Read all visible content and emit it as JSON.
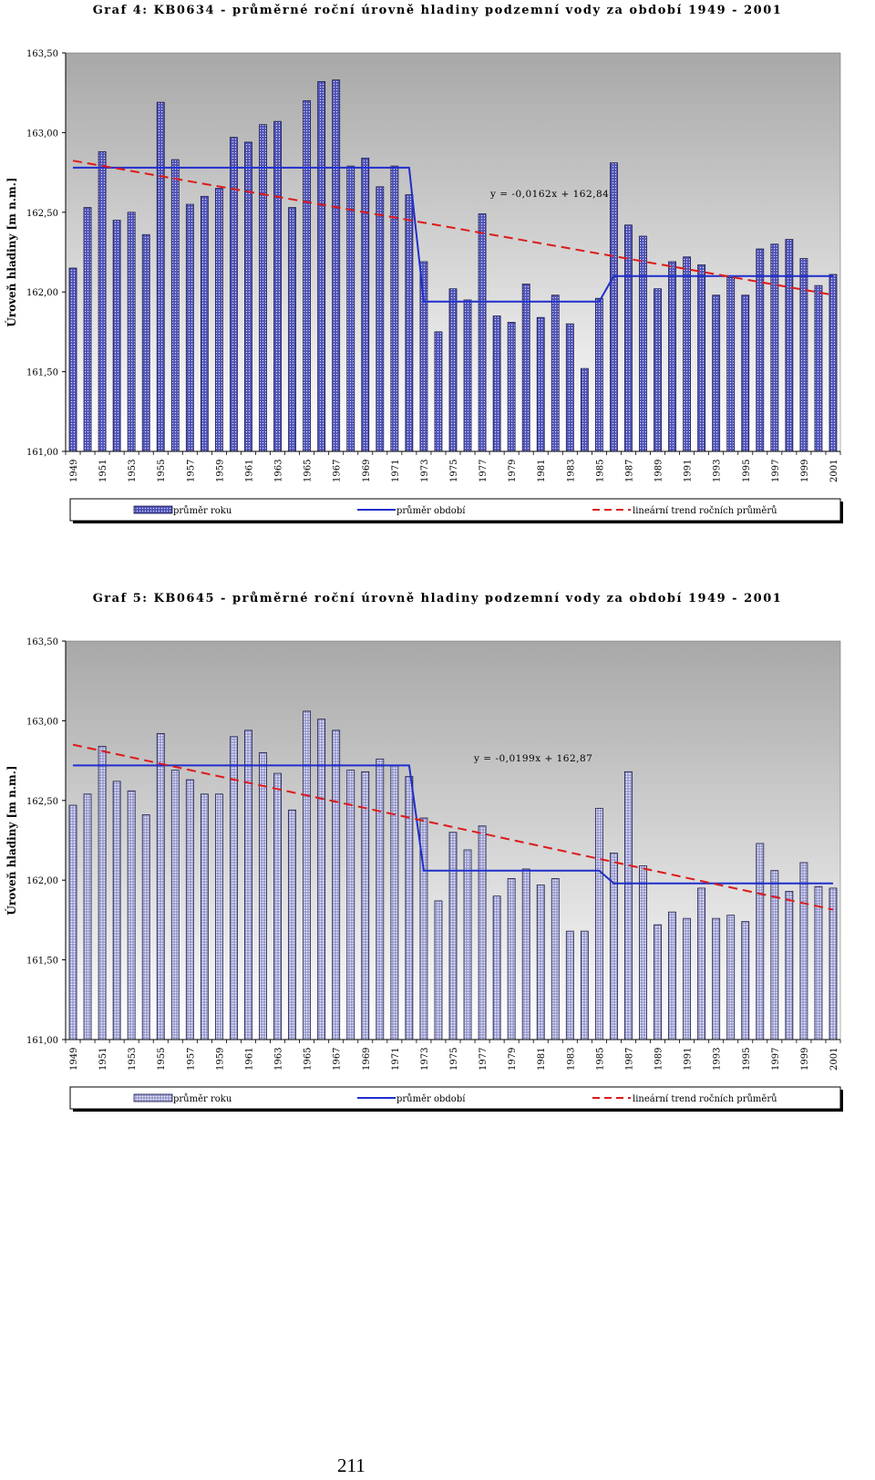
{
  "page_number": "211",
  "legend_labels": [
    "průměr roku",
    "průměr období",
    "lineární trend ročních průměrů"
  ],
  "colors": {
    "bar_fill": "#5b5fc4",
    "bar_fill_2": "#b4b6e0",
    "period_mean": "#1f2ecc",
    "trend": "#dd1a1a",
    "plot_bg_top": "#a8a8a8",
    "plot_bg_bottom": "#ffffff"
  },
  "chart_data": [
    {
      "type": "bar",
      "title": "Graf 4: KB0634 - průměrné roční úrovně hladiny podzemní vody za období 1949 - 2001",
      "ylabel": "Úroveň hladiny [m n.m.]",
      "xlabel": "",
      "ylim": [
        161.0,
        163.5
      ],
      "yticks": [
        "163,50",
        "163,00",
        "162,50",
        "162,00",
        "161,50",
        "161,00"
      ],
      "grid": false,
      "legend_position": "bottom",
      "trend_equation": "y = -0,0162x + 162,84",
      "x_tick_labels": [
        "1949",
        "1951",
        "1953",
        "1955",
        "1957",
        "1959",
        "1961",
        "1963",
        "1965",
        "1967",
        "1969",
        "1971",
        "1973",
        "1975",
        "1977",
        "1979",
        "1981",
        "1983",
        "1985",
        "1987",
        "1989",
        "1991",
        "1993",
        "1995",
        "1997",
        "1999",
        "2001"
      ],
      "categories": [
        1949,
        1950,
        1951,
        1952,
        1953,
        1954,
        1955,
        1956,
        1957,
        1958,
        1959,
        1960,
        1961,
        1962,
        1963,
        1964,
        1965,
        1966,
        1967,
        1968,
        1969,
        1970,
        1971,
        1972,
        1973,
        1974,
        1975,
        1976,
        1977,
        1978,
        1979,
        1980,
        1981,
        1982,
        1983,
        1984,
        1985,
        1986,
        1987,
        1988,
        1989,
        1990,
        1991,
        1992,
        1993,
        1994,
        1995,
        1996,
        1997,
        1998,
        1999,
        2000,
        2001
      ],
      "series": [
        {
          "name": "průměr roku",
          "type": "bar",
          "values": [
            162.15,
            162.53,
            162.88,
            162.45,
            162.5,
            162.36,
            163.19,
            162.83,
            162.55,
            162.6,
            162.65,
            162.97,
            162.94,
            163.05,
            163.07,
            162.53,
            163.2,
            163.32,
            163.33,
            162.79,
            162.84,
            162.66,
            162.79,
            162.61,
            162.19,
            161.75,
            162.02,
            161.95,
            162.49,
            161.85,
            161.81,
            162.05,
            161.84,
            161.98,
            161.8,
            161.52,
            161.96,
            162.81,
            162.42,
            162.35,
            162.02,
            162.19,
            162.22,
            162.17,
            161.98,
            162.09,
            161.98,
            162.27,
            162.3,
            162.33,
            162.21,
            162.04,
            162.11
          ]
        },
        {
          "name": "průměr období",
          "type": "step",
          "points": [
            [
              1949,
              162.78
            ],
            [
              1972,
              162.78
            ],
            [
              1973,
              161.94
            ],
            [
              1985,
              161.94
            ],
            [
              1986,
              162.1
            ],
            [
              2001,
              162.1
            ]
          ]
        },
        {
          "name": "lineární trend ročních průměrů",
          "type": "linear",
          "slope": -0.0162,
          "intercept": 162.84
        }
      ]
    },
    {
      "type": "bar",
      "title": "Graf 5: KB0645 - průměrné roční úrovně hladiny podzemní vody za období 1949 - 2001",
      "ylabel": "Úroveň hladiny [m n.m.]",
      "xlabel": "",
      "ylim": [
        161.0,
        163.5
      ],
      "yticks": [
        "163,50",
        "163,00",
        "162,50",
        "162,00",
        "161,50",
        "161,00"
      ],
      "grid": false,
      "legend_position": "bottom",
      "trend_equation": "y = -0,0199x + 162,87",
      "x_tick_labels": [
        "1949",
        "1951",
        "1953",
        "1955",
        "1957",
        "1959",
        "1961",
        "1963",
        "1965",
        "1967",
        "1969",
        "1971",
        "1973",
        "1975",
        "1977",
        "1979",
        "1981",
        "1983",
        "1985",
        "1987",
        "1989",
        "1991",
        "1993",
        "1995",
        "1997",
        "1999",
        "2001"
      ],
      "categories": [
        1949,
        1950,
        1951,
        1952,
        1953,
        1954,
        1955,
        1956,
        1957,
        1958,
        1959,
        1960,
        1961,
        1962,
        1963,
        1964,
        1965,
        1966,
        1967,
        1968,
        1969,
        1970,
        1971,
        1972,
        1973,
        1974,
        1975,
        1976,
        1977,
        1978,
        1979,
        1980,
        1981,
        1982,
        1983,
        1984,
        1985,
        1986,
        1987,
        1988,
        1989,
        1990,
        1991,
        1992,
        1993,
        1994,
        1995,
        1996,
        1997,
        1998,
        1999,
        2000,
        2001
      ],
      "series": [
        {
          "name": "průměr roku",
          "type": "bar",
          "values": [
            162.47,
            162.54,
            162.84,
            162.62,
            162.56,
            162.41,
            162.92,
            162.69,
            162.63,
            162.54,
            162.54,
            162.9,
            162.94,
            162.8,
            162.67,
            162.44,
            163.06,
            163.01,
            162.94,
            162.69,
            162.68,
            162.76,
            162.72,
            162.65,
            162.39,
            161.87,
            162.3,
            162.19,
            162.34,
            161.9,
            162.01,
            162.07,
            161.97,
            162.01,
            161.68,
            161.68,
            162.45,
            162.17,
            162.68,
            162.09,
            161.72,
            161.8,
            161.76,
            161.95,
            161.76,
            161.78,
            161.74,
            162.23,
            162.06,
            161.93,
            162.11,
            161.96,
            161.95
          ]
        },
        {
          "name": "průměr období",
          "type": "step",
          "points": [
            [
              1949,
              162.72
            ],
            [
              1972,
              162.72
            ],
            [
              1973,
              162.06
            ],
            [
              1985,
              162.06
            ],
            [
              1986,
              161.98
            ],
            [
              2001,
              161.98
            ]
          ]
        },
        {
          "name": "lineární trend ročních průměrů",
          "type": "linear",
          "slope": -0.0199,
          "intercept": 162.87
        }
      ]
    }
  ]
}
